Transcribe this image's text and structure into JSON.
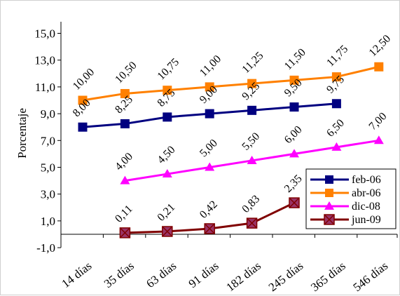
{
  "chart_data": {
    "type": "line",
    "title": "",
    "xlabel": "",
    "ylabel": "Porcentaje",
    "ylim": [
      -1.0,
      16.0
    ],
    "yticks": [
      "-1,0",
      "1,0",
      "3,0",
      "5,0",
      "7,0",
      "9,0",
      "11,0",
      "13,0",
      "15,0"
    ],
    "ytick_values": [
      -1,
      1,
      3,
      5,
      7,
      9,
      11,
      13,
      15
    ],
    "categories": [
      "14 días",
      "35 días",
      "63 días",
      "91 días",
      "182 días",
      "245 días",
      "365 días",
      "546 días"
    ],
    "grid": false,
    "legend_position": "bottom-right",
    "series": [
      {
        "name": "feb-06",
        "color": "#000080",
        "marker": "square",
        "values": [
          8.0,
          8.25,
          8.75,
          9.0,
          9.25,
          9.5,
          9.75,
          null
        ],
        "labels": [
          "8,00",
          "8,25",
          "8,75",
          "9,00",
          "9,25",
          "9,50",
          "9,75",
          null
        ]
      },
      {
        "name": "abr-06",
        "color": "#ff8000",
        "marker": "square",
        "values": [
          10.0,
          10.5,
          10.75,
          11.0,
          11.25,
          11.5,
          11.75,
          12.5
        ],
        "labels": [
          "10,00",
          "10,50",
          "10,75",
          "11,00",
          "11,25",
          "11,50",
          "11,75",
          "12,50"
        ]
      },
      {
        "name": "dic-08",
        "color": "#ff00ff",
        "marker": "triangle",
        "values": [
          null,
          4.0,
          4.5,
          5.0,
          5.5,
          6.0,
          6.5,
          7.0
        ],
        "labels": [
          null,
          "4,00",
          "4,50",
          "5,00",
          "5,50",
          "6,00",
          "6,50",
          "7,00"
        ]
      },
      {
        "name": "jun-09",
        "color": "#800000",
        "marker": "x-square",
        "values": [
          null,
          0.11,
          0.21,
          0.42,
          0.83,
          2.35,
          null,
          null
        ],
        "labels": [
          null,
          "0,11",
          "0,21",
          "0,42",
          "0,83",
          "2,35",
          null,
          null
        ]
      }
    ]
  }
}
